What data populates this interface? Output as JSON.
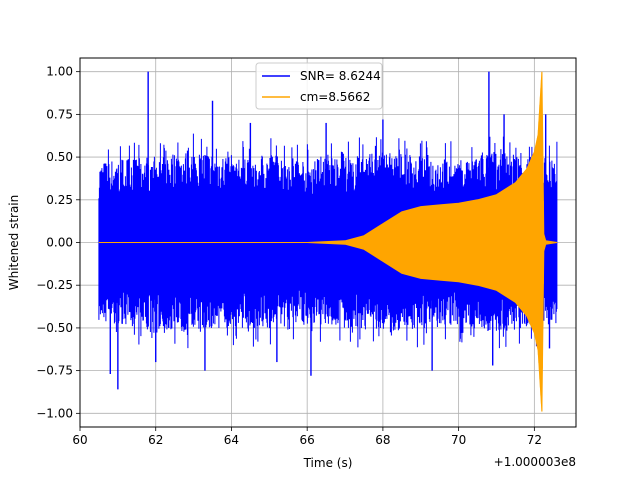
{
  "chart_data": {
    "type": "line",
    "title": "",
    "xlabel": "Time (s)",
    "ylabel": "Whitened strain",
    "offset_label": "+1.000003e8",
    "xlim": [
      60.0,
      73.1
    ],
    "ylim": [
      -1.08,
      1.08
    ],
    "x_ticks": [
      60,
      62,
      64,
      66,
      68,
      70,
      72
    ],
    "x_tick_labels": [
      "60",
      "62",
      "64",
      "66",
      "68",
      "70",
      "72"
    ],
    "y_ticks": [
      -1.0,
      -0.75,
      -0.5,
      -0.25,
      0.0,
      0.25,
      0.5,
      0.75,
      1.0
    ],
    "y_tick_labels": [
      "−1.00",
      "−0.75",
      "−0.50",
      "−0.25",
      "0.00",
      "0.25",
      "0.50",
      "0.75",
      "1.00"
    ],
    "grid": true,
    "legend_position": "top-center",
    "series": [
      {
        "name": "SNR= 8.6244",
        "color": "#0000ff",
        "x_range": [
          60.5,
          72.6
        ],
        "envelope_x": [
          60.5,
          61.0,
          62.0,
          63.0,
          64.0,
          65.0,
          66.0,
          67.0,
          68.0,
          69.0,
          70.0,
          71.0,
          72.0,
          72.6
        ],
        "envelope_upper": [
          0.47,
          0.5,
          0.52,
          0.55,
          0.52,
          0.53,
          0.5,
          0.52,
          0.55,
          0.52,
          0.5,
          0.55,
          0.52,
          0.5
        ],
        "envelope_lower": [
          -0.47,
          -0.5,
          -0.52,
          -0.55,
          -0.52,
          -0.53,
          -0.5,
          -0.52,
          -0.55,
          -0.52,
          -0.5,
          -0.55,
          -0.52,
          -0.5
        ],
        "peaks": [
          {
            "x": 60.8,
            "y": -0.77
          },
          {
            "x": 61.0,
            "y": -0.86
          },
          {
            "x": 61.8,
            "y": 1.0
          },
          {
            "x": 62.0,
            "y": -0.7
          },
          {
            "x": 63.5,
            "y": 0.83
          },
          {
            "x": 63.3,
            "y": -0.75
          },
          {
            "x": 64.5,
            "y": 0.7
          },
          {
            "x": 65.2,
            "y": -0.7
          },
          {
            "x": 66.1,
            "y": -0.78
          },
          {
            "x": 66.5,
            "y": 0.7
          },
          {
            "x": 68.0,
            "y": 0.72
          },
          {
            "x": 69.3,
            "y": -0.75
          },
          {
            "x": 70.8,
            "y": 1.0
          },
          {
            "x": 70.9,
            "y": -0.72
          },
          {
            "x": 71.2,
            "y": 0.75
          },
          {
            "x": 72.3,
            "y": 0.75
          },
          {
            "x": 72.4,
            "y": -0.62
          }
        ]
      },
      {
        "name": "cm=8.5662",
        "color": "#ffa500",
        "x_range": [
          60.5,
          72.6
        ],
        "envelope_x": [
          60.5,
          66.0,
          67.0,
          67.5,
          68.0,
          68.5,
          69.0,
          69.5,
          70.0,
          70.5,
          71.0,
          71.5,
          71.8,
          72.0,
          72.1,
          72.2,
          72.25,
          72.3,
          72.6
        ],
        "envelope_upper": [
          0.0,
          0.0,
          0.01,
          0.04,
          0.11,
          0.18,
          0.21,
          0.22,
          0.23,
          0.25,
          0.28,
          0.35,
          0.43,
          0.53,
          0.63,
          1.0,
          0.05,
          0.01,
          0.0
        ],
        "envelope_lower": [
          0.0,
          0.0,
          -0.01,
          -0.04,
          -0.11,
          -0.18,
          -0.21,
          -0.22,
          -0.23,
          -0.25,
          -0.28,
          -0.35,
          -0.43,
          -0.53,
          -0.63,
          -0.99,
          -0.05,
          -0.01,
          0.0
        ]
      }
    ]
  }
}
